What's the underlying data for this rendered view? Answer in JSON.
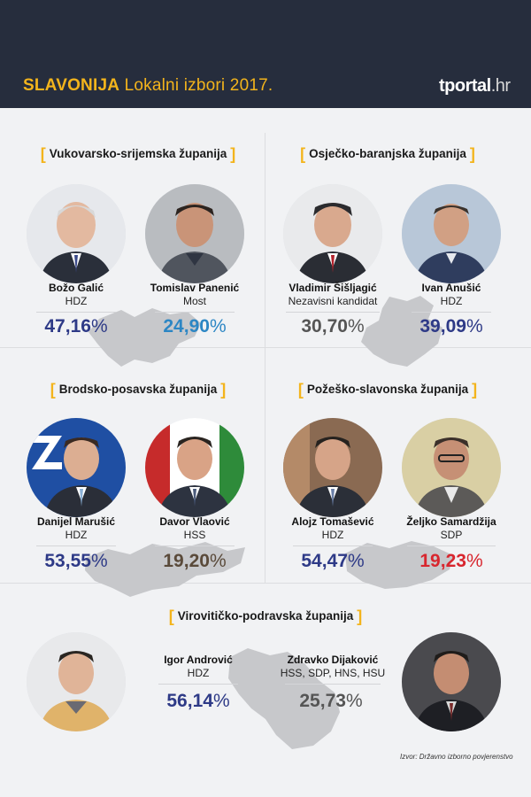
{
  "header": {
    "title_bold": "SLAVONIJA",
    "title_rest": "Lokalni izbori 2017.",
    "logo_main": "tportal",
    "logo_tld": ".hr"
  },
  "colors": {
    "header_bg": "#262d3d",
    "accent": "#f3b41c",
    "hdz_blue": "#2e3a87",
    "most_blue": "#2c86c4",
    "hss_brown": "#5a4a3a",
    "sdp_red": "#d8262e",
    "independent_grey": "#555555"
  },
  "regions": [
    {
      "title": "Vukovarsko-srijemska županija",
      "candidates": [
        {
          "name": "Božo Galić",
          "party": "HDZ",
          "percent": "47,16",
          "sign": "%"
        },
        {
          "name": "Tomislav Panenić",
          "party": "Most",
          "percent": "24,90",
          "sign": "%"
        }
      ]
    },
    {
      "title": "Osječko-baranjska županija",
      "candidates": [
        {
          "name": "Vladimir Šišljagić",
          "party": "Nezavisni kandidat",
          "percent": "30,70",
          "sign": "%"
        },
        {
          "name": "Ivan Anušić",
          "party": "HDZ",
          "percent": "39,09",
          "sign": "%"
        }
      ]
    },
    {
      "title": "Brodsko-posavska županija",
      "candidates": [
        {
          "name": "Danijel Marušić",
          "party": "HDZ",
          "percent": "53,55",
          "sign": "%"
        },
        {
          "name": "Davor Vlaović",
          "party": "HSS",
          "percent": "19,20",
          "sign": "%"
        }
      ]
    },
    {
      "title": "Požeško-slavonska županija",
      "candidates": [
        {
          "name": "Alojz Tomašević",
          "party": "HDZ",
          "percent": "54,47",
          "sign": "%"
        },
        {
          "name": "Željko Samardžija",
          "party": "SDP",
          "percent": "19,23",
          "sign": "%"
        }
      ]
    },
    {
      "title": "Virovitičko-podravska županija",
      "candidates": [
        {
          "name": "Igor Andrović",
          "party": "HDZ",
          "percent": "56,14",
          "sign": "%"
        },
        {
          "name": "Zdravko Dijaković",
          "party": "HSS, SDP, HNS, HSU",
          "percent": "25,73",
          "sign": "%"
        }
      ]
    }
  ],
  "source": "Izvor: Državno izborno povjerenstvo"
}
